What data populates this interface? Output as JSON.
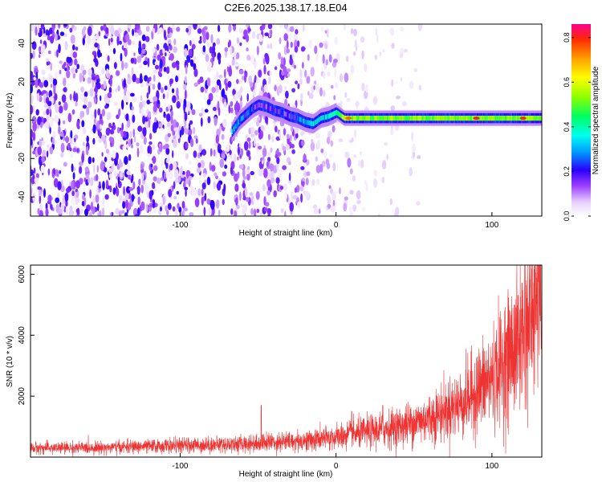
{
  "figure": {
    "title": "C2E6.2025.138.17.18.E04"
  },
  "chart_data": [
    {
      "type": "heatmap",
      "title": "",
      "xlabel": "Height of straight line (km)",
      "ylabel": "Frequency (Hz)",
      "xlim": [
        -196,
        132
      ],
      "ylim": [
        -50,
        50
      ],
      "xticks": [
        -100,
        0,
        100
      ],
      "yticks": [
        -40,
        -20,
        0,
        20,
        40
      ],
      "grid": false,
      "colorbar": {
        "label": "Normalized spectral amplitude",
        "range": [
          0.0,
          0.86
        ],
        "ticks": [
          0.0,
          0.2,
          0.4,
          0.6,
          0.8
        ]
      },
      "features": {
        "noise_scatter_x_range": [
          -196,
          20
        ],
        "signal_trace": [
          {
            "x": -67,
            "y": -6,
            "value": 0.3
          },
          {
            "x": -62,
            "y": 0,
            "value": 0.25
          },
          {
            "x": -58,
            "y": 3,
            "value": 0.2
          },
          {
            "x": -54,
            "y": 6,
            "value": 0.18
          },
          {
            "x": -50,
            "y": 8,
            "value": 0.15
          },
          {
            "x": -45,
            "y": 7,
            "value": 0.15
          },
          {
            "x": -40,
            "y": 5,
            "value": 0.15
          },
          {
            "x": -35,
            "y": 4,
            "value": 0.15
          },
          {
            "x": -30,
            "y": 2,
            "value": 0.18
          },
          {
            "x": -25,
            "y": 1,
            "value": 0.2
          },
          {
            "x": -20,
            "y": -1,
            "value": 0.25
          },
          {
            "x": -15,
            "y": -2,
            "value": 0.35
          },
          {
            "x": -10,
            "y": 1,
            "value": 0.3
          },
          {
            "x": -5,
            "y": 2,
            "value": 0.35
          },
          {
            "x": 0,
            "y": 4,
            "value": 0.4
          },
          {
            "x": 5,
            "y": 1,
            "value": 0.5
          },
          {
            "x": 132,
            "y": 1,
            "value": 0.5
          }
        ],
        "band_center_hz": 1,
        "hot_spots": [
          {
            "x": 8,
            "y": 1,
            "value": 0.75
          },
          {
            "x": 90,
            "y": 1,
            "value": 0.82
          },
          {
            "x": 120,
            "y": 1,
            "value": 0.8
          }
        ]
      }
    },
    {
      "type": "line",
      "title": "",
      "xlabel": "Height of straight line (km)",
      "ylabel": "SNR (10 * v/v)",
      "xlim": [
        -196,
        132
      ],
      "ylim": [
        0,
        6300
      ],
      "xticks": [
        -100,
        0,
        100
      ],
      "yticks": [
        2000,
        4000,
        6000
      ],
      "grid": false,
      "series": [
        {
          "color": "#ee3333",
          "mean_curve": [
            {
              "x": -196,
              "y": 300
            },
            {
              "x": -150,
              "y": 310
            },
            {
              "x": -100,
              "y": 380
            },
            {
              "x": -60,
              "y": 430
            },
            {
              "x": -40,
              "y": 500
            },
            {
              "x": -20,
              "y": 530
            },
            {
              "x": 0,
              "y": 650
            },
            {
              "x": 20,
              "y": 820
            },
            {
              "x": 40,
              "y": 1000
            },
            {
              "x": 60,
              "y": 1280
            },
            {
              "x": 80,
              "y": 1750
            },
            {
              "x": 100,
              "y": 2600
            },
            {
              "x": 115,
              "y": 3600
            },
            {
              "x": 125,
              "y": 4700
            },
            {
              "x": 132,
              "y": 5600
            }
          ],
          "spikes": [
            {
              "x": -48,
              "y": 1700
            },
            {
              "x": 10,
              "y": 1500
            },
            {
              "x": 30,
              "y": 1700
            },
            {
              "x": 130,
              "y": 6300
            }
          ]
        }
      ]
    }
  ]
}
